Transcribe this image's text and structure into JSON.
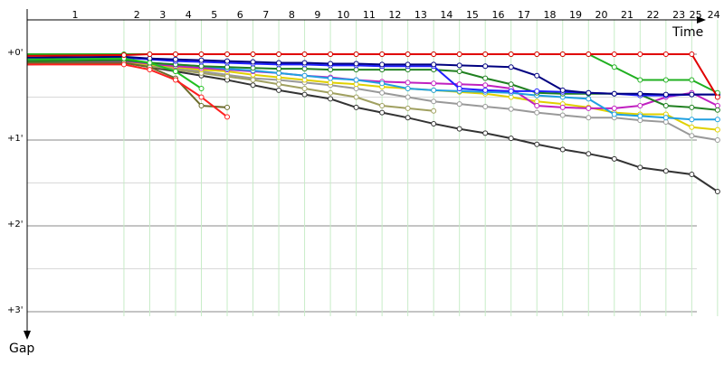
{
  "chart_data": {
    "type": "line",
    "x_label": "Time",
    "y_label": "Gap",
    "xlim": [
      0,
      27
    ],
    "ylim": [
      -0.4,
      3.2
    ],
    "xticks": [
      {
        "value": 1.86,
        "label": "1"
      },
      {
        "value": 4.25,
        "label": "2"
      },
      {
        "value": 5.25,
        "label": "3"
      },
      {
        "value": 6.25,
        "label": "4"
      },
      {
        "value": 7.25,
        "label": "5"
      },
      {
        "value": 8.25,
        "label": "6"
      },
      {
        "value": 9.25,
        "label": "7"
      },
      {
        "value": 10.25,
        "label": "8"
      },
      {
        "value": 11.25,
        "label": "9"
      },
      {
        "value": 12.25,
        "label": "10"
      },
      {
        "value": 13.25,
        "label": "11"
      },
      {
        "value": 14.25,
        "label": "12"
      },
      {
        "value": 15.25,
        "label": "13"
      },
      {
        "value": 16.25,
        "label": "14"
      },
      {
        "value": 17.25,
        "label": "15"
      },
      {
        "value": 18.25,
        "label": "16"
      },
      {
        "value": 19.25,
        "label": "17"
      },
      {
        "value": 20.25,
        "label": "18"
      },
      {
        "value": 21.25,
        "label": "19"
      },
      {
        "value": 22.25,
        "label": "20"
      },
      {
        "value": 23.25,
        "label": "21"
      },
      {
        "value": 24.25,
        "label": "22"
      },
      {
        "value": 25.25,
        "label": "23"
      },
      {
        "value": 25.9,
        "label": "25"
      },
      {
        "value": 26.6,
        "label": "24"
      }
    ],
    "yticks": [
      {
        "value": 0,
        "label": "+0'"
      },
      {
        "value": 1,
        "label": "+1'"
      },
      {
        "value": 2,
        "label": "+2'"
      },
      {
        "value": 3,
        "label": "+3'"
      }
    ],
    "minor_yticks": [
      0.5,
      1.5,
      2.5
    ],
    "x": [
      0,
      3.75,
      4.75,
      5.75,
      6.75,
      7.75,
      8.75,
      9.75,
      10.75,
      11.75,
      12.75,
      13.75,
      14.75,
      15.75,
      16.75,
      17.75,
      18.75,
      19.75,
      20.75,
      21.75,
      22.75,
      23.75,
      24.75,
      25.75,
      26.75
    ],
    "series": [
      {
        "color": "#333333",
        "values": [
          0.12,
          0.1,
          0.15,
          0.2,
          0.25,
          0.3,
          0.36,
          0.42,
          0.47,
          0.52,
          0.62,
          0.68,
          0.74,
          0.81,
          0.87,
          0.92,
          0.98,
          1.05,
          1.11,
          1.16,
          1.22,
          1.32,
          1.36,
          1.4,
          1.6
        ]
      },
      {
        "color": "#999999",
        "values": [
          0.1,
          0.09,
          0.13,
          0.17,
          0.2,
          0.24,
          0.28,
          0.3,
          0.33,
          0.36,
          0.4,
          0.45,
          0.5,
          0.55,
          0.58,
          0.61,
          0.64,
          0.68,
          0.71,
          0.74,
          0.74,
          0.77,
          0.79,
          0.95,
          1.0
        ]
      },
      {
        "color": "#a0a060",
        "values": [
          0.11,
          0.1,
          0.14,
          0.18,
          0.22,
          0.26,
          0.3,
          0.35,
          0.4,
          0.45,
          0.5,
          0.6,
          0.63,
          0.66,
          null,
          null,
          null,
          null,
          null,
          null,
          null,
          null,
          null,
          null,
          null
        ]
      },
      {
        "color": "#e0d000",
        "values": [
          0.1,
          0.09,
          0.12,
          0.15,
          0.18,
          0.2,
          0.24,
          0.27,
          0.3,
          0.33,
          0.35,
          0.38,
          0.4,
          0.42,
          0.44,
          0.46,
          0.5,
          0.55,
          0.58,
          0.62,
          0.68,
          0.7,
          0.7,
          0.85,
          0.88
        ]
      },
      {
        "color": "#c020c0",
        "values": [
          0.09,
          0.08,
          0.11,
          0.14,
          0.16,
          0.18,
          0.2,
          0.22,
          0.25,
          0.27,
          0.3,
          0.32,
          0.33,
          0.34,
          0.35,
          0.36,
          0.4,
          0.6,
          0.62,
          0.63,
          0.63,
          0.6,
          0.5,
          0.45,
          0.6
        ]
      },
      {
        "color": "#20a0e0",
        "values": [
          0.08,
          0.07,
          0.1,
          0.12,
          0.14,
          0.17,
          0.19,
          0.22,
          0.25,
          0.28,
          0.3,
          0.34,
          0.4,
          0.42,
          0.43,
          0.44,
          0.45,
          0.48,
          0.5,
          0.52,
          0.7,
          0.72,
          0.74,
          0.76,
          0.76
        ]
      },
      {
        "color": "#208020",
        "values": [
          0.08,
          0.07,
          0.1,
          0.12,
          0.14,
          0.15,
          0.16,
          0.17,
          0.17,
          0.18,
          0.18,
          0.18,
          0.18,
          0.18,
          0.2,
          0.28,
          0.35,
          0.45,
          0.46,
          0.46,
          0.46,
          0.47,
          0.6,
          0.62,
          0.65
        ]
      },
      {
        "color": "#2020ff",
        "values": [
          0.06,
          0.04,
          0.06,
          0.08,
          0.09,
          0.1,
          0.11,
          0.12,
          0.12,
          0.13,
          0.13,
          0.14,
          0.14,
          0.14,
          0.4,
          0.42,
          0.43,
          0.43,
          0.44,
          0.45,
          0.46,
          0.48,
          0.48,
          0.47,
          0.47
        ]
      },
      {
        "color": "#000080",
        "values": [
          0.04,
          0.03,
          0.05,
          0.06,
          0.07,
          0.08,
          0.09,
          0.1,
          0.1,
          0.11,
          0.11,
          0.12,
          0.12,
          0.12,
          0.13,
          0.14,
          0.15,
          0.25,
          0.42,
          0.45,
          0.46,
          0.46,
          0.47,
          0.47,
          0.47
        ]
      },
      {
        "color": "#6b6b2a",
        "values": [
          0.1,
          0.1,
          0.15,
          0.28,
          0.6,
          0.62,
          null,
          null,
          null,
          null,
          null,
          null,
          null,
          null,
          null,
          null,
          null,
          null,
          null,
          null,
          null,
          null,
          null,
          null,
          null
        ]
      },
      {
        "color": "#ff2020",
        "values": [
          0.12,
          0.12,
          0.18,
          0.3,
          0.5,
          0.73,
          null,
          null,
          null,
          null,
          null,
          null,
          null,
          null,
          null,
          null,
          null,
          null,
          null,
          null,
          null,
          null,
          null,
          null,
          null
        ]
      },
      {
        "color": "#20c020",
        "values": [
          0.06,
          0.05,
          0.1,
          0.2,
          0.4,
          null,
          null,
          null,
          null,
          null,
          null,
          null,
          null,
          null,
          null,
          null,
          null,
          null,
          null,
          null,
          null,
          null,
          null,
          null,
          null
        ]
      },
      {
        "color": "#20b020",
        "values": [
          0,
          0,
          0,
          0,
          0,
          0,
          0,
          0,
          0,
          0,
          0,
          0,
          0,
          0,
          0,
          0,
          0,
          0,
          0,
          0,
          0.15,
          0.3,
          0.3,
          0.3,
          0.45
        ]
      },
      {
        "color": "#e00000",
        "values": [
          0.02,
          0.01,
          0,
          0,
          0,
          0,
          0,
          0,
          0,
          0,
          0,
          0,
          0,
          0,
          0,
          0,
          0,
          0,
          0,
          0,
          0,
          0,
          0,
          0,
          0.5
        ]
      }
    ]
  }
}
